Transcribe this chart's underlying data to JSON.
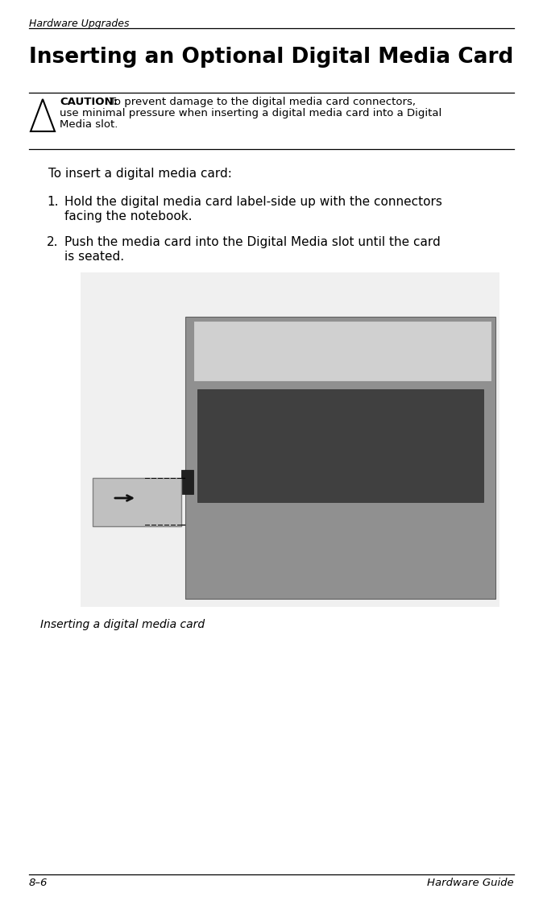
{
  "bg_color": "#ffffff",
  "header_text": "Hardware Upgrades",
  "header_font_size": 9,
  "title_text": "Inserting an Optional Digital Media Card",
  "title_font_size": 19,
  "caution_label": "CAUTION:",
  "caution_body_line1": "To prevent damage to the digital media card connectors,",
  "caution_body_line2": "use minimal pressure when inserting a digital media card into a Digital",
  "caution_body_line3": "Media slot.",
  "caution_font_size": 9.5,
  "body_intro": "To insert a digital media card:",
  "body_font_size": 11,
  "step1_line1": "Hold the digital media card label-side up with the connectors",
  "step1_line2": "facing the notebook.",
  "step2_line1": "Push the media card into the Digital Media slot until the card",
  "step2_line2": "is seated.",
  "caption_text": "Inserting a digital media card",
  "caption_font_size": 10,
  "footer_left": "8–6",
  "footer_right": "Hardware Guide",
  "footer_font_size": 9.5,
  "line_color": "#000000",
  "text_color": "#000000",
  "image_placeholder_color": "#e8e8e8"
}
